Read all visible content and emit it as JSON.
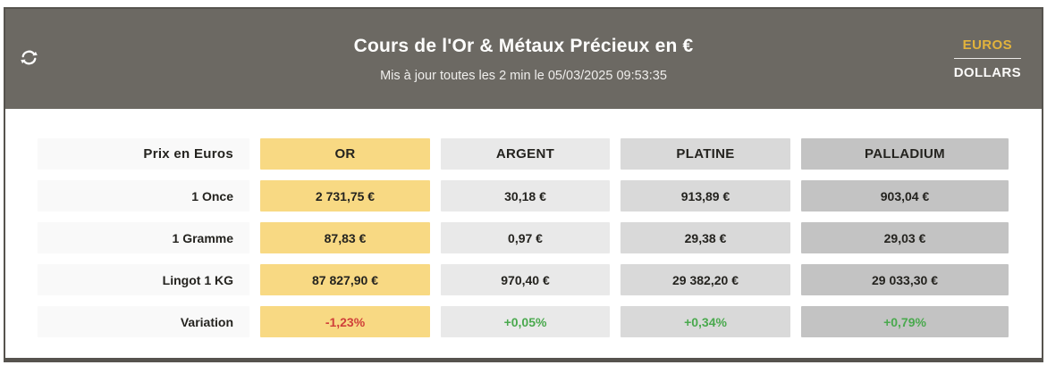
{
  "header": {
    "title": "Cours de l'Or & Métaux Précieux en €",
    "subtitle": "Mis à jour toutes les 2 min le 05/03/2025 09:53:35",
    "refresh_icon": "refresh-sync-arrows",
    "currency_toggle": {
      "active": "EUROS",
      "inactive": "DOLLARS",
      "active_color": "#e2b33c"
    },
    "background_color": "#6c6963"
  },
  "table": {
    "corner_label": "Prix en Euros",
    "row_labels": [
      "1 Once",
      "1 Gramme",
      "Lingot 1 KG",
      "Variation"
    ],
    "columns": [
      {
        "label": "OR",
        "color": "#f8d983",
        "values": [
          "2 731,75 €",
          "87,83 €",
          "87 827,90 €"
        ],
        "variation": "-1,23%",
        "variation_direction": "down"
      },
      {
        "label": "ARGENT",
        "color": "#e9e9e9",
        "values": [
          "30,18 €",
          "0,97 €",
          "970,40 €"
        ],
        "variation": "+0,05%",
        "variation_direction": "up"
      },
      {
        "label": "PLATINE",
        "color": "#d9d9d9",
        "values": [
          "913,89 €",
          "29,38 €",
          "29 382,20 €"
        ],
        "variation": "+0,34%",
        "variation_direction": "up"
      },
      {
        "label": "PALLADIUM",
        "color": "#c3c3c3",
        "values": [
          "903,04 €",
          "29,03 €",
          "29 033,30 €"
        ],
        "variation": "+0,79%",
        "variation_direction": "up"
      }
    ],
    "variation_colors": {
      "up": "#4aa94e",
      "down": "#d0403a"
    }
  }
}
